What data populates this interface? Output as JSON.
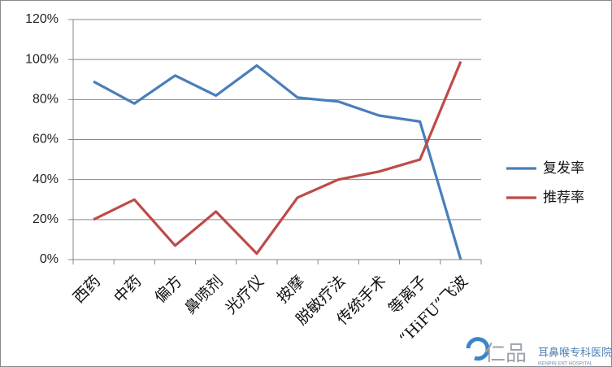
{
  "chart_data": {
    "type": "line",
    "categories": [
      "西药",
      "中药",
      "偏方",
      "鼻喷剂",
      "光疗仪",
      "按摩",
      "脱敏疗法",
      "传统手术",
      "等离子",
      "“HiFU”飞波"
    ],
    "series": [
      {
        "name": "复发率",
        "color": "#4a7ebb",
        "values": [
          89,
          78,
          92,
          82,
          97,
          81,
          79,
          72,
          69,
          0
        ]
      },
      {
        "name": "推荐率",
        "color": "#be4b48",
        "values": [
          20,
          30,
          7,
          24,
          3,
          31,
          40,
          44,
          50,
          99
        ]
      }
    ],
    "ylim": [
      0,
      120
    ],
    "yticks": [
      {
        "value": 0,
        "label": "0%"
      },
      {
        "value": 20,
        "label": "20%"
      },
      {
        "value": 40,
        "label": "40%"
      },
      {
        "value": 60,
        "label": "60%"
      },
      {
        "value": 80,
        "label": "80%"
      },
      {
        "value": 100,
        "label": "100%"
      },
      {
        "value": 120,
        "label": "120%"
      }
    ],
    "grid": true,
    "legend": "right",
    "watermark": {
      "brand": "仁品",
      "name": "耳鼻喉专科医院",
      "english": "RENPIN ENT HOSPITAL"
    }
  }
}
